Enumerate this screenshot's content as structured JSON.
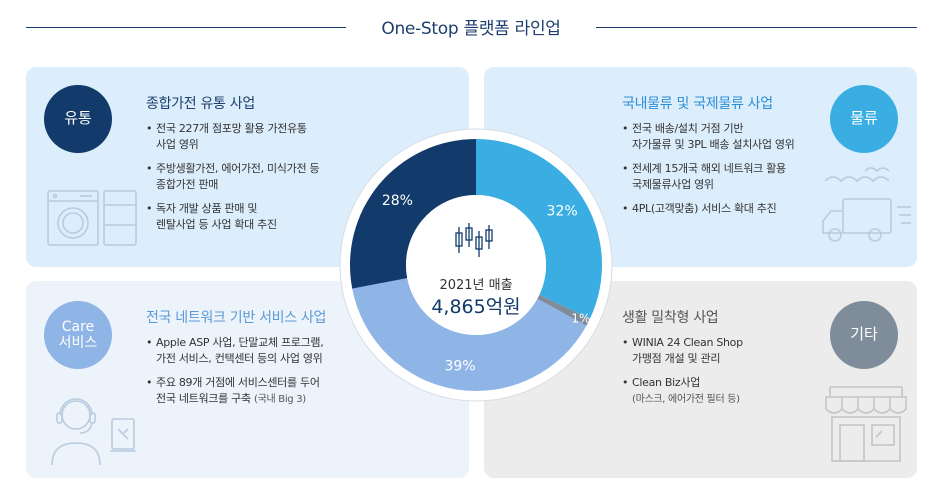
{
  "header": {
    "title": "One-Stop 플랫폼 라인업"
  },
  "panels": {
    "distribution": {
      "badge": "유통",
      "title": "종합가전 유통 사업",
      "items": [
        {
          "text": "전국 227개 점포망 활용 가전유통\n사업 영위"
        },
        {
          "text": "주방생활가전, 에어가전, 미식가전 등\n종합가전 판매"
        },
        {
          "text": "독자 개발 상품 판매 및\n렌탈사업 등 사업 확대 추진"
        }
      ],
      "icon": "washer-icon"
    },
    "logistics": {
      "badge": "물류",
      "title": "국내물류 및 국제물류 사업",
      "items": [
        {
          "text": "전국 배송/설치 거점 기반\n자가물류 및 3PL 배송 설치사업 영위"
        },
        {
          "text": "전세계 15개국 해외 네트워크 활용\n국제물류사업 영위"
        },
        {
          "text": "4PL(고객맞춤) 서비스 확대 추진"
        }
      ],
      "icon": "truck-icon"
    },
    "care": {
      "badge": "Care\n서비스",
      "title": "전국 네트워크 기반 서비스 사업",
      "items": [
        {
          "text": "Apple ASP 사업, 단말교체 프로그램,\n가전 서비스, 컨택센터 등의 사업 영위"
        },
        {
          "text": "주요 89개 거점에 서비스센터를 두어\n전국 네트워크를 구축",
          "note": "(국내 Big 3)"
        }
      ],
      "icon": "headset-agent-icon"
    },
    "other": {
      "badge": "기타",
      "title": "생활 밀착형 사업",
      "items": [
        {
          "text": "WINIA 24 Clean Shop\n가맹점 개설 및 관리"
        },
        {
          "text": "Clean Biz사업",
          "note": "(마스크, 에어가전 필터 등)"
        }
      ],
      "icon": "storefront-icon"
    }
  },
  "colors": {
    "navy": "#123a6a",
    "blue": "#3aaee2",
    "light_blue": "#8fb4e6",
    "gray": "#7f8c99",
    "title_navy": "#1d3f6e",
    "title_blue": "#2a8fd6",
    "title_light_blue": "#5b9ad6",
    "title_gray": "#555555"
  },
  "chart_data": {
    "type": "pie",
    "donut": true,
    "center_label": "2021년 매출",
    "center_value": "4,865억원",
    "center_icon": "candlestick-chart-icon",
    "slices": [
      {
        "name": "물류",
        "value": 32,
        "label": "32%",
        "color": "#3aaee2"
      },
      {
        "name": "기타",
        "value": 1,
        "label": "1%",
        "color": "#7f8c99"
      },
      {
        "name": "Care 서비스",
        "value": 39,
        "label": "39%",
        "color": "#8fb4e6"
      },
      {
        "name": "유통",
        "value": 28,
        "label": "28%",
        "color": "#123a6a"
      }
    ]
  }
}
